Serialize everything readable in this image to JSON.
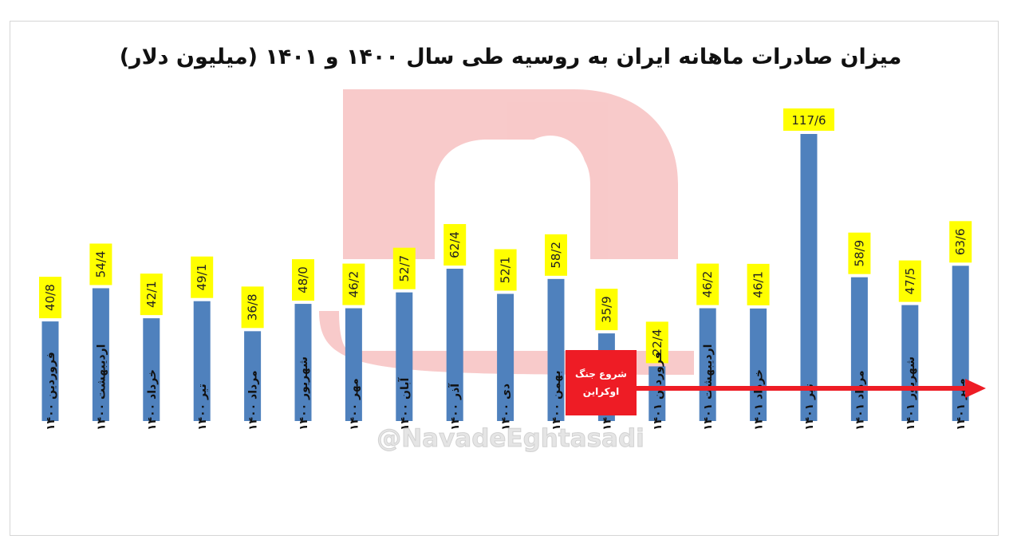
{
  "chart_data": {
    "type": "bar",
    "title": "میزان صادرات ماهانه ایران به روسیه طی سال ۱۴۰۰ و ۱۴۰۱ (میلیون دلار)",
    "categories": [
      [
        "فروردین",
        "۱۴۰۰"
      ],
      [
        "اردیبهشت",
        "۱۴۰۰"
      ],
      [
        "خرداد",
        "۱۴۰۰"
      ],
      [
        "تیر",
        "۱۴۰۰"
      ],
      [
        "مرداد",
        "۱۴۰۰"
      ],
      [
        "شهریور",
        "۱۴۰۰"
      ],
      [
        "مهر",
        "۱۴۰۰"
      ],
      [
        "آبان",
        "۱۴۰۰"
      ],
      [
        "آذر",
        "۱۴۰۰"
      ],
      [
        "دی",
        "۱۴۰۰"
      ],
      [
        "بهمن",
        "۱۴۰۰"
      ],
      [
        "اسفند",
        "۱۴۰۰"
      ],
      [
        "فروردین",
        "۱۴۰۱"
      ],
      [
        "اردیبهشت",
        "۱۴۰۱"
      ],
      [
        "خرداد",
        "۱۴۰۱"
      ],
      [
        "تیر",
        "۱۴۰۱"
      ],
      [
        "مرداد",
        "۱۴۰۱"
      ],
      [
        "شهریور",
        "۱۴۰۱"
      ],
      [
        "مهر",
        "۱۴۰۱"
      ]
    ],
    "values": [
      40.8,
      54.4,
      42.1,
      49.1,
      36.8,
      48.0,
      46.2,
      52.7,
      62.4,
      52.1,
      58.2,
      35.9,
      22.4,
      46.2,
      46.1,
      117.6,
      58.9,
      47.5,
      63.6
    ],
    "data_labels": [
      "40/8",
      "54/4",
      "42/1",
      "49/1",
      "36/8",
      "48/0",
      "46/2",
      "52/7",
      "62/4",
      "52/1",
      "58/2",
      "35/9",
      "22/4",
      "46/2",
      "46/1",
      "117/6",
      "58/9",
      "47/5",
      "63/6"
    ],
    "ylim": [
      0,
      117.6
    ],
    "bar_color": "#4f81bd",
    "label_bg_color": "#ffff00",
    "grid": false,
    "legend": "none",
    "annotation": {
      "line1": "شروع جنگ",
      "line2": "اوکراین",
      "box_color": "#ee1c25",
      "arrow_color": "#ee1c25"
    }
  },
  "watermark": {
    "handle": "@NavadeEghtasadi",
    "logo_text": "نود اقتصادی",
    "logo_color": "#f4b3b3"
  }
}
